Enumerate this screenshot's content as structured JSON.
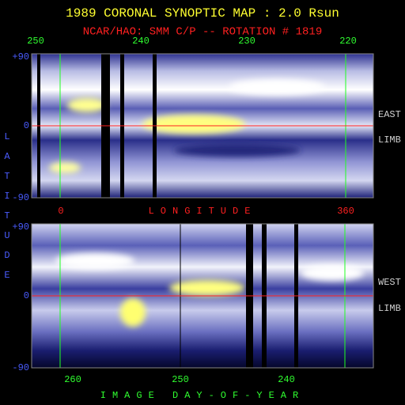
{
  "title": "1989 CORONAL SYNOPTIC MAP : 2.0 Rsun",
  "subtitle": "NCAR/HAO: SMM C/P -- ROTATION # 1819",
  "top_panel": {
    "axis_labels": [
      "250",
      "240",
      "230",
      "220"
    ],
    "lat_labels": [
      "+90",
      "0",
      "-90"
    ],
    "side_labels": [
      "EAST",
      "LIMB"
    ]
  },
  "longitude_axis": {
    "start": "0",
    "title": "LONGITUDE",
    "end": "360"
  },
  "y_axis_title": "LATITUDE",
  "bottom_panel": {
    "axis_labels": [
      "260",
      "250",
      "240"
    ],
    "lat_labels": [
      "+90",
      "0",
      "-90"
    ],
    "side_labels": [
      "WEST",
      "LIMB"
    ]
  },
  "x_axis_title": "IMAGE DAY-OF-YEAR"
}
